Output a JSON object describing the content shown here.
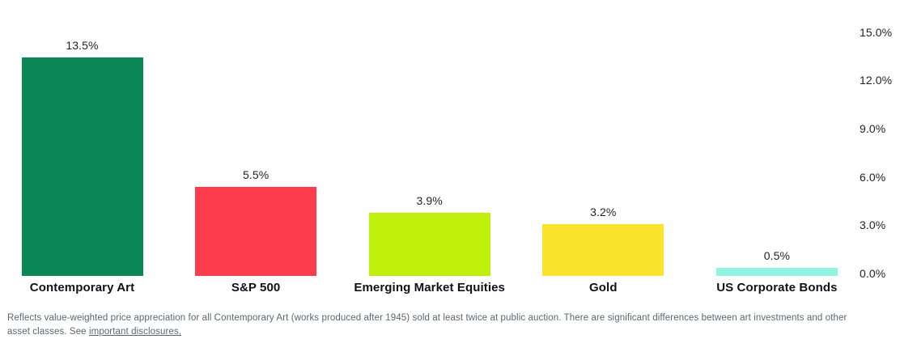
{
  "chart_data": {
    "type": "bar",
    "categories": [
      "Contemporary Art",
      "S&P 500",
      "Emerging Market Equities",
      "Gold",
      "US Corporate Bonds"
    ],
    "values": [
      13.5,
      5.5,
      3.9,
      3.2,
      0.5
    ],
    "value_labels": [
      "13.5%",
      "5.5%",
      "3.9%",
      "3.2%",
      "0.5%"
    ],
    "bar_colors": [
      "#0a8755",
      "#fd3c4c",
      "#bff00c",
      "#fae32b",
      "#90f4e0"
    ],
    "title": "",
    "xlabel": "",
    "ylabel": "",
    "ylim": [
      0,
      15
    ],
    "y_ticks": [
      {
        "value": 0,
        "label": "0.0%"
      },
      {
        "value": 3,
        "label": "3.0%"
      },
      {
        "value": 6,
        "label": "6.0%"
      },
      {
        "value": 9,
        "label": "9.0%"
      },
      {
        "value": 12,
        "label": "12.0%"
      },
      {
        "value": 15,
        "label": "15.0%"
      }
    ],
    "grid": false,
    "legend": "none",
    "y_axis_position": "right",
    "value_label_color": "#1e2127",
    "category_label_color": "#101318"
  },
  "footnote": {
    "text_before_link": "Reflects value-weighted price appreciation for all Contemporary Art (works produced after 1945) sold at least twice at public auction. There are significant differences between art investments and other asset classes. See ",
    "link_text": "important disclosures.",
    "text_color": "#5b6770"
  }
}
